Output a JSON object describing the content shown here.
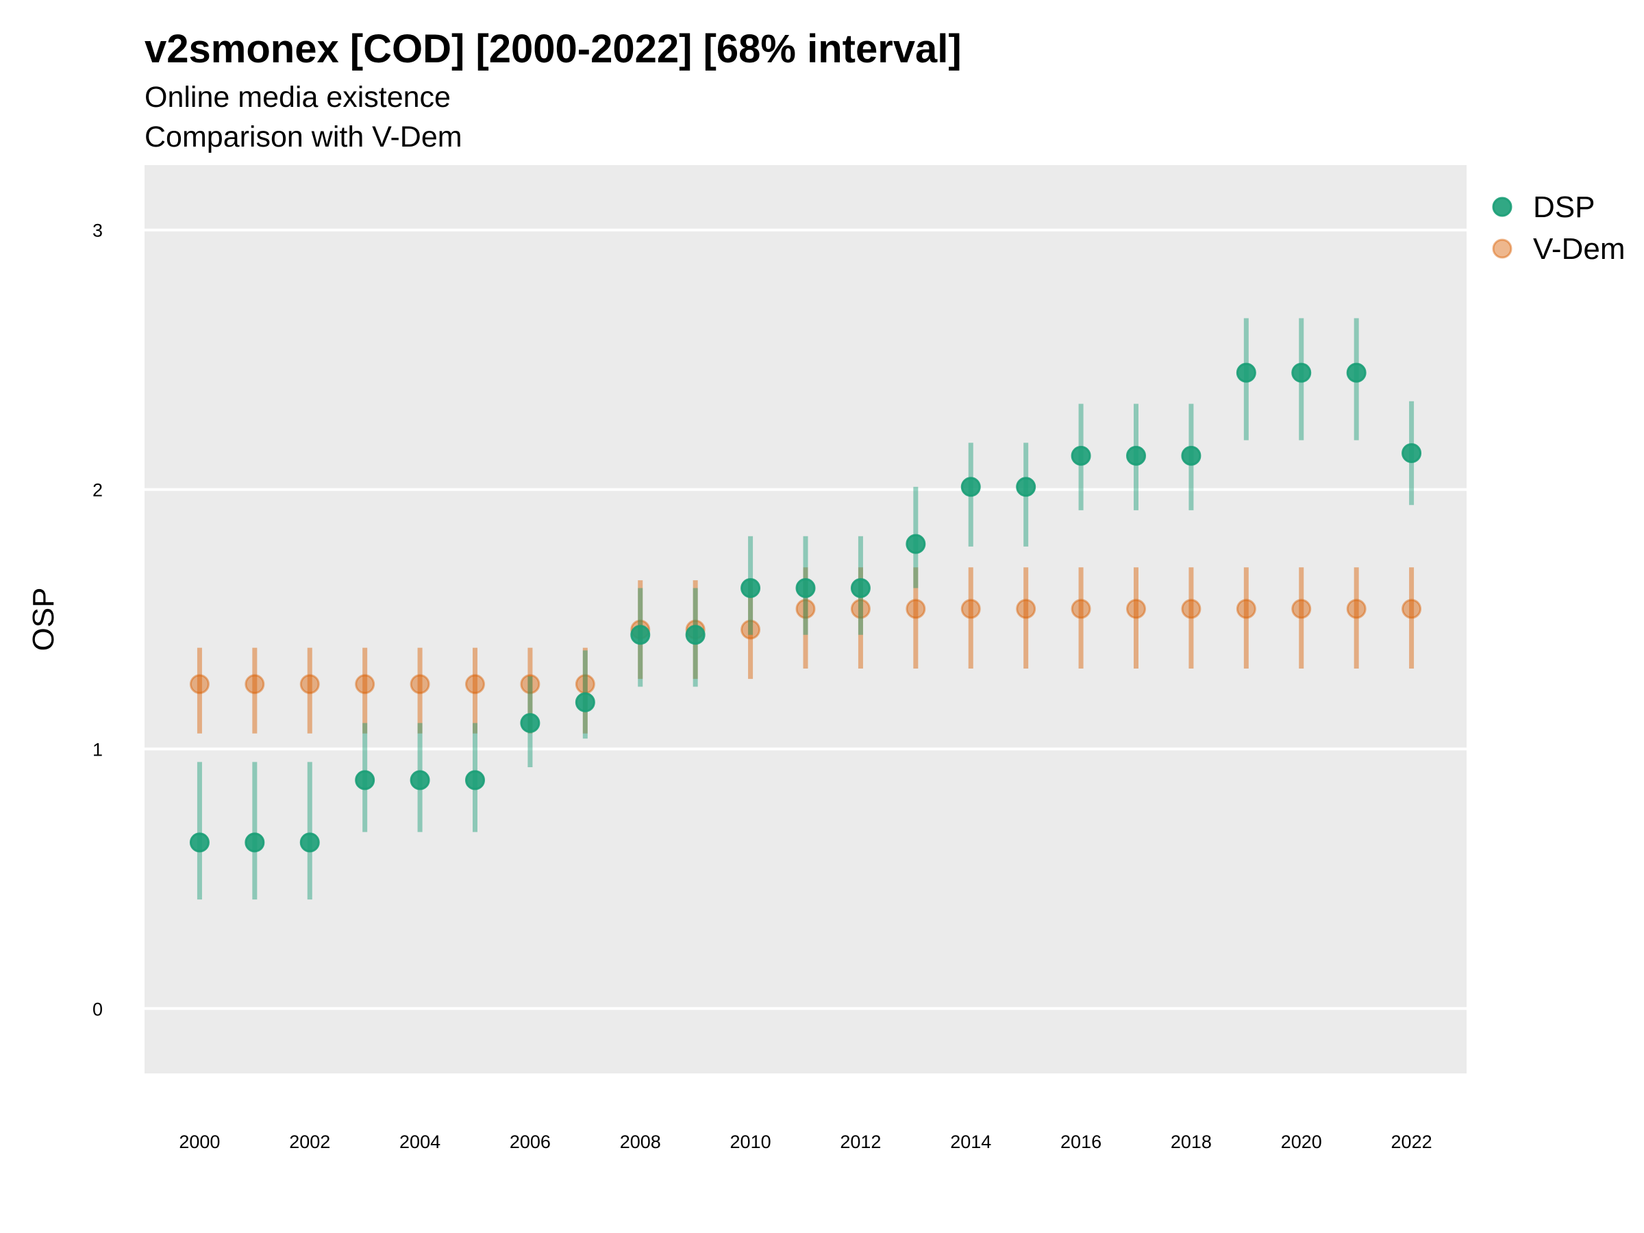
{
  "chart_data": {
    "type": "scatter",
    "title": "v2smonex [COD] [2000-2022] [68% interval]",
    "subtitle": [
      "Online media existence",
      "Comparison with V-Dem"
    ],
    "xlabel": "",
    "ylabel": "OSP",
    "x": [
      2000,
      2001,
      2002,
      2003,
      2004,
      2005,
      2006,
      2007,
      2008,
      2009,
      2010,
      2011,
      2012,
      2013,
      2014,
      2015,
      2016,
      2017,
      2018,
      2019,
      2020,
      2021,
      2022
    ],
    "xticks": [
      "2000",
      "2002",
      "2004",
      "2006",
      "2008",
      "2010",
      "2012",
      "2014",
      "2016",
      "2018",
      "2020",
      "2022"
    ],
    "yticks": [
      "0",
      "1",
      "2",
      "3"
    ],
    "ylim": [
      -0.25,
      3.25
    ],
    "xlim": [
      1999,
      2023
    ],
    "grid": "horizontal",
    "legend_position": "right",
    "series": [
      {
        "name": "DSP",
        "color": "#1b9e77",
        "values": [
          0.64,
          0.64,
          0.64,
          0.88,
          0.88,
          0.88,
          1.1,
          1.18,
          1.44,
          1.44,
          1.62,
          1.62,
          1.62,
          1.79,
          2.01,
          2.01,
          2.13,
          2.13,
          2.13,
          2.45,
          2.45,
          2.45,
          2.14
        ],
        "lower": [
          0.42,
          0.42,
          0.42,
          0.68,
          0.68,
          0.68,
          0.93,
          1.04,
          1.24,
          1.24,
          1.44,
          1.44,
          1.44,
          1.62,
          1.78,
          1.78,
          1.92,
          1.92,
          1.92,
          2.19,
          2.19,
          2.19,
          1.94
        ],
        "upper": [
          0.95,
          0.95,
          0.95,
          1.1,
          1.1,
          1.1,
          1.28,
          1.38,
          1.62,
          1.62,
          1.82,
          1.82,
          1.82,
          2.01,
          2.18,
          2.18,
          2.33,
          2.33,
          2.33,
          2.66,
          2.66,
          2.66,
          2.34
        ]
      },
      {
        "name": "V-Dem",
        "color": "#d95f02",
        "values": [
          1.25,
          1.25,
          1.25,
          1.25,
          1.25,
          1.25,
          1.25,
          1.25,
          1.46,
          1.46,
          1.46,
          1.54,
          1.54,
          1.54,
          1.54,
          1.54,
          1.54,
          1.54,
          1.54,
          1.54,
          1.54,
          1.54,
          1.54
        ],
        "lower": [
          1.06,
          1.06,
          1.06,
          1.06,
          1.06,
          1.06,
          1.06,
          1.06,
          1.27,
          1.27,
          1.27,
          1.31,
          1.31,
          1.31,
          1.31,
          1.31,
          1.31,
          1.31,
          1.31,
          1.31,
          1.31,
          1.31,
          1.31
        ],
        "upper": [
          1.39,
          1.39,
          1.39,
          1.39,
          1.39,
          1.39,
          1.39,
          1.39,
          1.65,
          1.65,
          1.65,
          1.7,
          1.7,
          1.7,
          1.7,
          1.7,
          1.7,
          1.7,
          1.7,
          1.7,
          1.7,
          1.7,
          1.7
        ]
      }
    ]
  }
}
